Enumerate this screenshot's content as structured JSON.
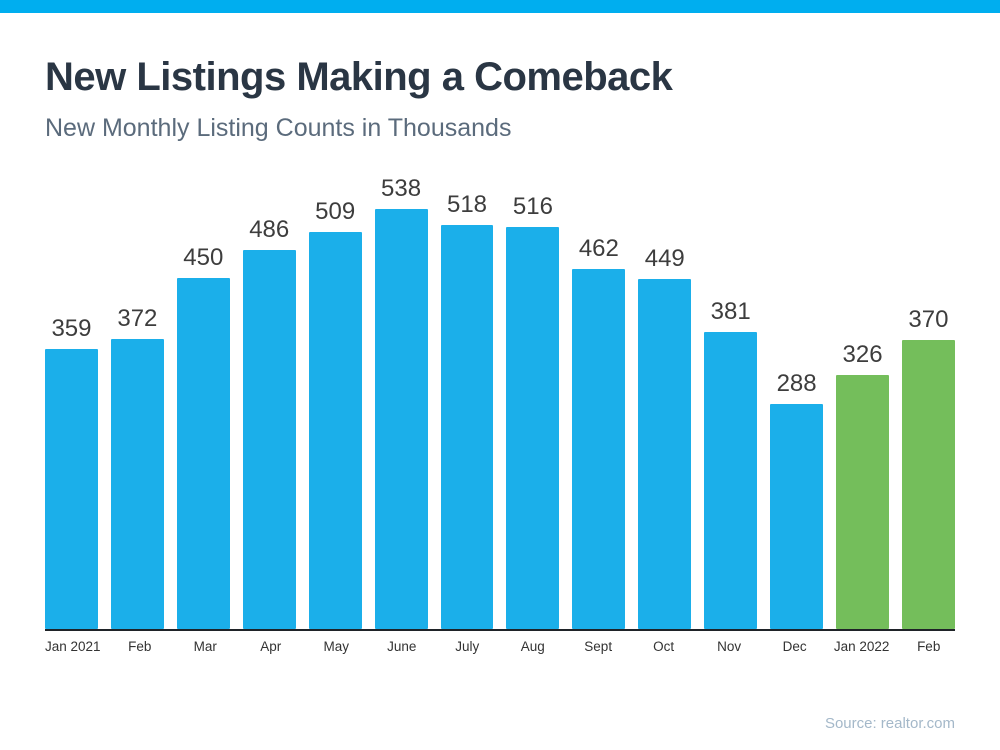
{
  "accent": {
    "stripe_color": "#00AEEF",
    "bar_default_color": "#1BAFEA",
    "bar_highlight_color": "#74BE5B"
  },
  "header": {
    "title": "New Listings Making a Comeback",
    "subtitle": "New Monthly Listing Counts in Thousands"
  },
  "footer": {
    "source": "Source: realtor.com"
  },
  "chart_data": {
    "type": "bar",
    "title": "New Listings Making a Comeback",
    "subtitle": "New Monthly Listing Counts in Thousands",
    "categories": [
      "Jan 2021",
      "Feb",
      "Mar",
      "Apr",
      "May",
      "June",
      "July",
      "Aug",
      "Sept",
      "Oct",
      "Nov",
      "Dec",
      "Jan 2022",
      "Feb"
    ],
    "values": [
      359,
      372,
      450,
      486,
      509,
      538,
      518,
      516,
      462,
      449,
      381,
      288,
      326,
      370
    ],
    "highlight_indices": [
      12,
      13
    ],
    "value_labels": true,
    "grid": false,
    "legend": false,
    "xlabel": "",
    "ylabel": "",
    "ylim": [
      0,
      560
    ],
    "source": "Source: realtor.com"
  }
}
